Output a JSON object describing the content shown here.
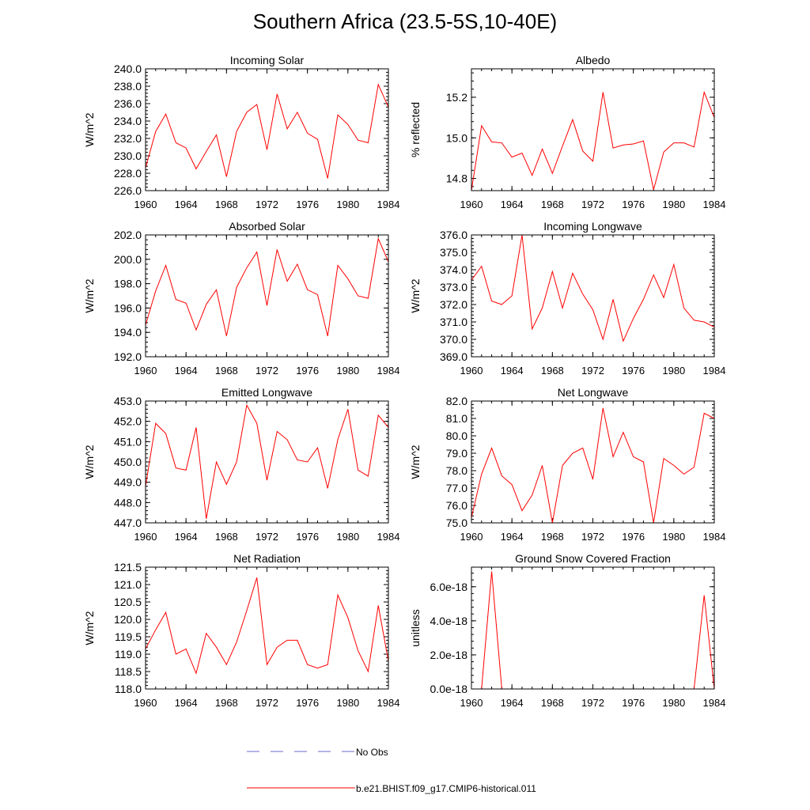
{
  "figure": {
    "title": "Southern Africa (23.5-5S,10-40E)",
    "line_color": "#ff0000",
    "obs_color": "#6a6acd"
  },
  "legend": {
    "items": [
      {
        "label": "No Obs",
        "style": "dashed",
        "color": "#6a6acd"
      },
      {
        "label": "b.e21.BHIST.f09_g17.CMIP6-historical.011",
        "style": "solid",
        "color": "#ff0000"
      }
    ]
  },
  "chart_data": [
    {
      "type": "line",
      "title": "Incoming Solar",
      "ylabel": "W/m^2",
      "xlim": [
        1960,
        1984
      ],
      "ylim": [
        226,
        240
      ],
      "xticks": [
        1960,
        1964,
        1968,
        1972,
        1976,
        1980,
        1984
      ],
      "xtick_labels": [
        "1960",
        "1964",
        "1968",
        "1972",
        "1976",
        "1980",
        "1984"
      ],
      "yticks": [
        226,
        228,
        230,
        232,
        234,
        236,
        238,
        240
      ],
      "ytick_labels": [
        "226.0",
        "228.0",
        "230.0",
        "232.0",
        "234.0",
        "236.0",
        "238.0",
        "240.0"
      ],
      "x": [
        1960,
        1961,
        1962,
        1963,
        1964,
        1965,
        1966,
        1967,
        1968,
        1969,
        1970,
        1971,
        1972,
        1973,
        1974,
        1975,
        1976,
        1977,
        1978,
        1979,
        1980,
        1981,
        1982,
        1983,
        1984
      ],
      "series": [
        {
          "values": [
            228.6,
            232.8,
            234.8,
            231.5,
            230.9,
            228.5,
            230.5,
            232.4,
            227.6,
            232.8,
            235.0,
            235.9,
            230.7,
            237.1,
            233.1,
            235.0,
            232.6,
            231.9,
            227.4,
            234.7,
            233.6,
            231.8,
            231.5,
            238.2,
            235.6
          ]
        }
      ]
    },
    {
      "type": "line",
      "title": "Albedo",
      "ylabel": "% reflected",
      "xlim": [
        1960,
        1984
      ],
      "ylim": [
        14.74,
        15.34
      ],
      "xticks": [
        1960,
        1964,
        1968,
        1972,
        1976,
        1980,
        1984
      ],
      "xtick_labels": [
        "1960",
        "1964",
        "1968",
        "1972",
        "1976",
        "1980",
        "1984"
      ],
      "yticks": [
        14.8,
        15.0,
        15.2
      ],
      "ytick_labels": [
        "14.8",
        "15.0",
        "15.2"
      ],
      "x": [
        1960,
        1961,
        1962,
        1963,
        1964,
        1965,
        1966,
        1967,
        1968,
        1969,
        1970,
        1971,
        1972,
        1973,
        1974,
        1975,
        1976,
        1977,
        1978,
        1979,
        1980,
        1981,
        1982,
        1983,
        1984
      ],
      "series": [
        {
          "values": [
            14.74,
            15.06,
            14.98,
            14.975,
            14.905,
            14.925,
            14.815,
            14.945,
            14.825,
            14.96,
            15.09,
            14.935,
            14.885,
            15.225,
            14.95,
            14.965,
            14.97,
            14.985,
            14.745,
            14.93,
            14.975,
            14.975,
            14.955,
            15.225,
            15.1
          ]
        }
      ]
    },
    {
      "type": "line",
      "title": "Absorbed Solar",
      "ylabel": "W/m^2",
      "xlim": [
        1960,
        1984
      ],
      "ylim": [
        192,
        202
      ],
      "xticks": [
        1960,
        1964,
        1968,
        1972,
        1976,
        1980,
        1984
      ],
      "xtick_labels": [
        "1960",
        "1964",
        "1968",
        "1972",
        "1976",
        "1980",
        "1984"
      ],
      "yticks": [
        192,
        194,
        196,
        198,
        200,
        202
      ],
      "ytick_labels": [
        "192.0",
        "194.0",
        "196.0",
        "198.0",
        "200.0",
        "202.0"
      ],
      "x": [
        1960,
        1961,
        1962,
        1963,
        1964,
        1965,
        1966,
        1967,
        1968,
        1969,
        1970,
        1971,
        1972,
        1973,
        1974,
        1975,
        1976,
        1977,
        1978,
        1979,
        1980,
        1981,
        1982,
        1983,
        1984
      ],
      "series": [
        {
          "values": [
            194.6,
            197.4,
            199.5,
            196.7,
            196.4,
            194.2,
            196.3,
            197.5,
            193.7,
            197.7,
            199.3,
            200.6,
            196.2,
            200.8,
            198.2,
            199.6,
            197.5,
            197.1,
            193.7,
            199.5,
            198.4,
            197.0,
            196.8,
            201.7,
            199.8
          ]
        }
      ]
    },
    {
      "type": "line",
      "title": "Incoming Longwave",
      "ylabel": "W/m^2",
      "xlim": [
        1960,
        1984
      ],
      "ylim": [
        369,
        376
      ],
      "xticks": [
        1960,
        1964,
        1968,
        1972,
        1976,
        1980,
        1984
      ],
      "xtick_labels": [
        "1960",
        "1964",
        "1968",
        "1972",
        "1976",
        "1980",
        "1984"
      ],
      "yticks": [
        369,
        370,
        371,
        372,
        373,
        374,
        375,
        376
      ],
      "ytick_labels": [
        "369.0",
        "370.0",
        "371.0",
        "372.0",
        "373.0",
        "374.0",
        "375.0",
        "376.0"
      ],
      "x": [
        1960,
        1961,
        1962,
        1963,
        1964,
        1965,
        1966,
        1967,
        1968,
        1969,
        1970,
        1971,
        1972,
        1973,
        1974,
        1975,
        1976,
        1977,
        1978,
        1979,
        1980,
        1981,
        1982,
        1983,
        1984
      ],
      "series": [
        {
          "values": [
            373.4,
            374.2,
            372.2,
            372.0,
            372.5,
            376.0,
            370.6,
            371.8,
            373.9,
            371.8,
            373.8,
            372.6,
            371.7,
            370.0,
            372.3,
            369.9,
            371.2,
            372.3,
            373.7,
            372.4,
            374.3,
            371.8,
            371.1,
            371.0,
            370.7
          ]
        }
      ]
    },
    {
      "type": "line",
      "title": "Emitted Longwave",
      "ylabel": "W/m^2",
      "xlim": [
        1960,
        1984
      ],
      "ylim": [
        447,
        453
      ],
      "xticks": [
        1960,
        1964,
        1968,
        1972,
        1976,
        1980,
        1984
      ],
      "xtick_labels": [
        "1960",
        "1964",
        "1968",
        "1972",
        "1976",
        "1980",
        "1984"
      ],
      "yticks": [
        447,
        448,
        449,
        450,
        451,
        452,
        453
      ],
      "ytick_labels": [
        "447.0",
        "448.0",
        "449.0",
        "450.0",
        "451.0",
        "452.0",
        "453.0"
      ],
      "x": [
        1960,
        1961,
        1962,
        1963,
        1964,
        1965,
        1966,
        1967,
        1968,
        1969,
        1970,
        1971,
        1972,
        1973,
        1974,
        1975,
        1976,
        1977,
        1978,
        1979,
        1980,
        1981,
        1982,
        1983,
        1984
      ],
      "series": [
        {
          "values": [
            448.8,
            451.9,
            451.4,
            449.7,
            449.6,
            451.7,
            447.2,
            450.0,
            448.9,
            450.0,
            452.8,
            451.9,
            449.1,
            451.5,
            451.1,
            450.1,
            450.0,
            450.7,
            448.7,
            451.1,
            452.6,
            449.6,
            449.3,
            452.3,
            451.7
          ]
        }
      ]
    },
    {
      "type": "line",
      "title": "Net Longwave",
      "ylabel": "W/m^2",
      "xlim": [
        1960,
        1984
      ],
      "ylim": [
        75,
        82
      ],
      "xticks": [
        1960,
        1964,
        1968,
        1972,
        1976,
        1980,
        1984
      ],
      "xtick_labels": [
        "1960",
        "1964",
        "1968",
        "1972",
        "1976",
        "1980",
        "1984"
      ],
      "yticks": [
        75,
        76,
        77,
        78,
        79,
        80,
        81,
        82
      ],
      "ytick_labels": [
        "75.0",
        "76.0",
        "77.0",
        "78.0",
        "79.0",
        "80.0",
        "81.0",
        "82.0"
      ],
      "x": [
        1960,
        1961,
        1962,
        1963,
        1964,
        1965,
        1966,
        1967,
        1968,
        1969,
        1970,
        1971,
        1972,
        1973,
        1974,
        1975,
        1976,
        1977,
        1978,
        1979,
        1980,
        1981,
        1982,
        1983,
        1984
      ],
      "series": [
        {
          "values": [
            75.3,
            77.8,
            79.3,
            77.7,
            77.2,
            75.7,
            76.6,
            78.3,
            75.0,
            78.3,
            79.0,
            79.3,
            77.5,
            81.6,
            78.8,
            80.2,
            78.8,
            78.5,
            75.0,
            78.7,
            78.3,
            77.8,
            78.2,
            81.3,
            81.0
          ]
        }
      ]
    },
    {
      "type": "line",
      "title": "Net Radiation",
      "ylabel": "W/m^2",
      "xlim": [
        1960,
        1984
      ],
      "ylim": [
        118,
        121.5
      ],
      "xticks": [
        1960,
        1964,
        1968,
        1972,
        1976,
        1980,
        1984
      ],
      "xtick_labels": [
        "1960",
        "1964",
        "1968",
        "1972",
        "1976",
        "1980",
        "1984"
      ],
      "yticks": [
        118,
        118.5,
        119,
        119.5,
        120,
        120.5,
        121,
        121.5
      ],
      "ytick_labels": [
        "118.0",
        "118.5",
        "119.0",
        "119.5",
        "120.0",
        "120.5",
        "121.0",
        "121.5"
      ],
      "x": [
        1960,
        1961,
        1962,
        1963,
        1964,
        1965,
        1966,
        1967,
        1968,
        1969,
        1970,
        1971,
        1972,
        1973,
        1974,
        1975,
        1976,
        1977,
        1978,
        1979,
        1980,
        1981,
        1982,
        1983,
        1984
      ],
      "series": [
        {
          "values": [
            119.15,
            119.7,
            120.2,
            119.0,
            119.15,
            118.45,
            119.6,
            119.2,
            118.7,
            119.35,
            120.25,
            121.2,
            118.7,
            119.2,
            119.4,
            119.4,
            118.7,
            118.6,
            118.7,
            120.7,
            120.05,
            119.1,
            118.5,
            120.4,
            118.8
          ]
        }
      ]
    },
    {
      "type": "line",
      "title": "Ground Snow Covered Fraction",
      "ylabel": "unitless",
      "xlim": [
        1960,
        1984
      ],
      "ylim": [
        0,
        7.15e-18
      ],
      "xticks": [
        1960,
        1964,
        1968,
        1972,
        1976,
        1980,
        1984
      ],
      "xtick_labels": [
        "1960",
        "1964",
        "1968",
        "1972",
        "1976",
        "1980",
        "1984"
      ],
      "yticks": [
        0,
        2e-18,
        4e-18,
        6e-18
      ],
      "ytick_labels": [
        "0.0e-18",
        "2.0e-18",
        "4.0e-18",
        "6.0e-18"
      ],
      "x": [
        1960,
        1961,
        1962,
        1963,
        1964,
        1965,
        1966,
        1967,
        1968,
        1969,
        1970,
        1971,
        1972,
        1973,
        1974,
        1975,
        1976,
        1977,
        1978,
        1979,
        1980,
        1981,
        1982,
        1983,
        1984
      ],
      "series": [
        {
          "values": [
            0,
            0,
            6.9e-18,
            0,
            0,
            0,
            0,
            0,
            0,
            0,
            0,
            0,
            0,
            0,
            0,
            0,
            0,
            0,
            0,
            0,
            0,
            0,
            0,
            5.5e-18,
            0
          ]
        }
      ]
    }
  ]
}
